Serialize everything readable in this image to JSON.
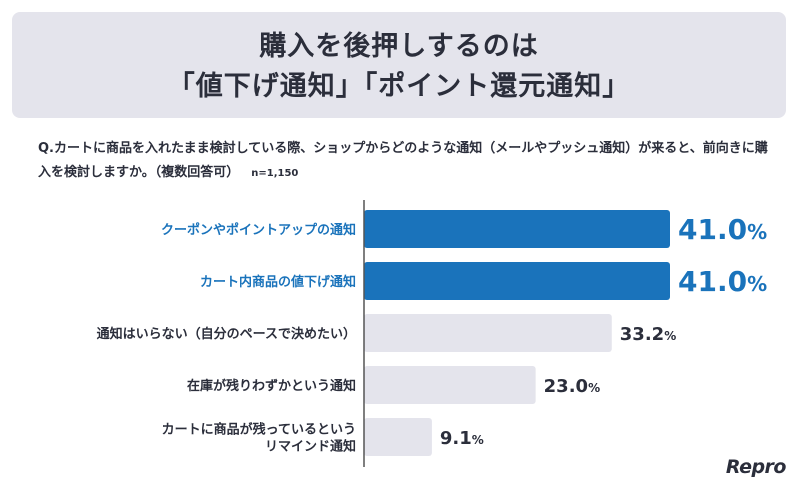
{
  "header": {
    "title_lines": [
      "購入を後押しするのは",
      "「値下げ通知」「ポイント還元通知」"
    ]
  },
  "question": {
    "text": "Q.カートに商品を入れたまま検討している際、ショップからどのような通知（メールやプッシュ通知）が来ると、前向きに購入を検討しますか。（複数回答可）",
    "n": "n=1,150"
  },
  "brand": "Repro",
  "colors": {
    "highlight": "#1a73bb",
    "muted": "#e4e4ec",
    "text": "#2b2e3b",
    "axis": "#555555"
  },
  "chart_data": {
    "type": "bar",
    "orientation": "horizontal",
    "categories": [
      [
        "クーポンやポイントアップの通知"
      ],
      [
        "カート内商品の値下げ通知"
      ],
      [
        "通知はいらない（自分のペースで決めたい）"
      ],
      [
        "在庫が残りわずかという通知"
      ],
      [
        "カートに商品が残っているという",
        "リマインド通知"
      ]
    ],
    "values": [
      41.0,
      41.0,
      33.2,
      23.0,
      9.1
    ],
    "labels": [
      "41.0",
      "41.0",
      "33.2",
      "23.0",
      "9.1"
    ],
    "unit": "%",
    "highlighted": [
      true,
      true,
      false,
      false,
      false
    ],
    "xlim": [
      0,
      41.0
    ],
    "grid": false
  }
}
